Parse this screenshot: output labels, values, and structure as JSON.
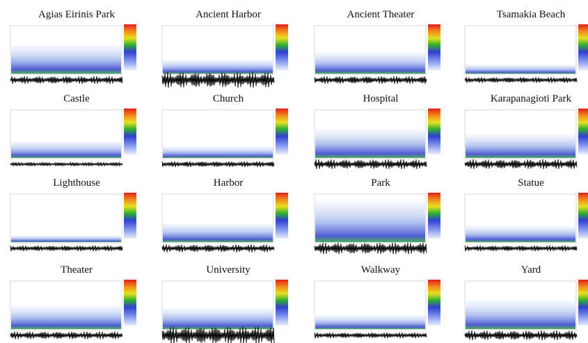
{
  "panels": [
    {
      "title": "Agias Eirinis  Park"
    },
    {
      "title": "Ancient Harbor"
    },
    {
      "title": "Ancient Theater"
    },
    {
      "title": "Tsamakia Beach"
    },
    {
      "title": "Castle"
    },
    {
      "title": "Church"
    },
    {
      "title": "Hospital"
    },
    {
      "title": "Karapanagioti Park"
    },
    {
      "title": "Lighthouse"
    },
    {
      "title": "Harbor"
    },
    {
      "title": "Park"
    },
    {
      "title": "Statue"
    },
    {
      "title": "Theater"
    },
    {
      "title": "University"
    },
    {
      "title": "Walkway"
    },
    {
      "title": "Yard"
    }
  ]
}
